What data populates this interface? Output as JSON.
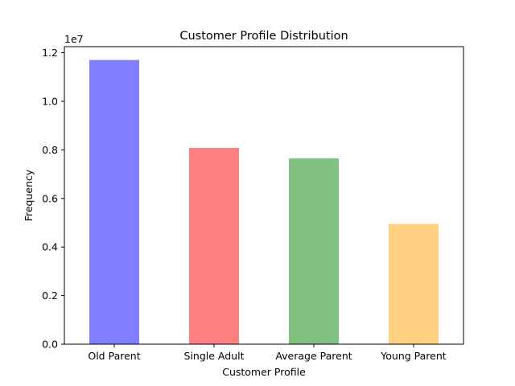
{
  "chart_data": {
    "type": "bar",
    "title": "Customer Profile Distribution",
    "xlabel": "Customer Profile",
    "ylabel": "Frequency",
    "y_offset_label": "1e7",
    "y_scale": 10000000,
    "categories": [
      "Old Parent",
      "Single Adult",
      "Average Parent",
      "Young Parent"
    ],
    "values": [
      11700000,
      8080000,
      7650000,
      4950000
    ],
    "colors": [
      "#8080ff",
      "#ff8080",
      "#80c080",
      "#ffd080"
    ],
    "ylim": [
      0,
      12250000
    ],
    "yticks": [
      0,
      2000000,
      4000000,
      6000000,
      8000000,
      10000000,
      12000000
    ],
    "ytick_labels": [
      "0.0",
      "0.2",
      "0.4",
      "0.6",
      "0.8",
      "1.0",
      "1.2"
    ],
    "grid": false,
    "legend": "none"
  }
}
